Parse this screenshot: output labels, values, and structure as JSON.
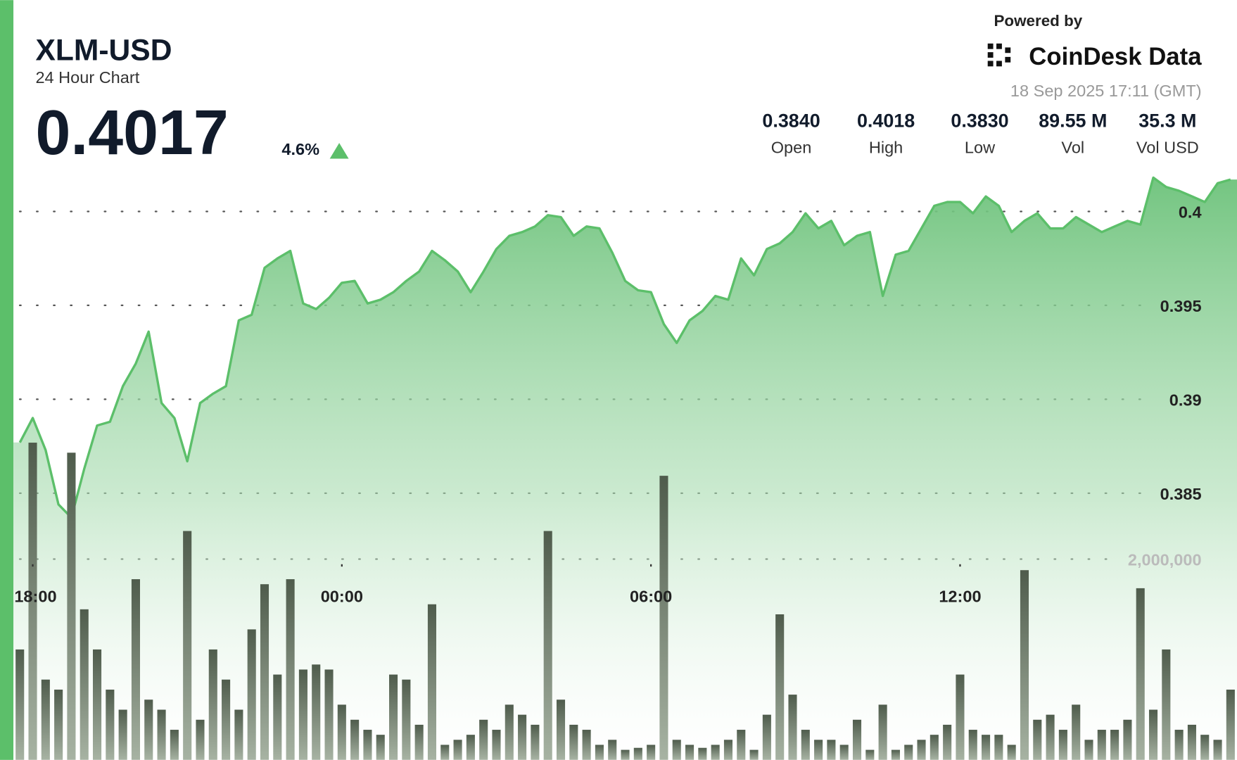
{
  "chart_data": {
    "type": "area",
    "title": "XLM-USD",
    "subtitle": "24 Hour Chart",
    "price": "0.4017",
    "change": "4.6%",
    "powered_by": "Powered by",
    "brand": "CoinDesk Data",
    "timestamp": "18 Sep 2025 17:11 (GMT)",
    "stats": [
      {
        "value": "0.3840",
        "label": "Open"
      },
      {
        "value": "0.4018",
        "label": "High"
      },
      {
        "value": "0.3830",
        "label": "Low"
      },
      {
        "value": "89.55 M",
        "label": "Vol"
      },
      {
        "value": "35.3 M",
        "label": "Vol USD"
      }
    ],
    "categories": [
      null,
      "18:00",
      null,
      null,
      null,
      null,
      null,
      null,
      null,
      null,
      null,
      null,
      null,
      null,
      null,
      null,
      null,
      null,
      null,
      null,
      null,
      null,
      null,
      null,
      null,
      "00:00",
      null,
      null,
      null,
      null,
      null,
      null,
      null,
      null,
      null,
      null,
      null,
      null,
      null,
      null,
      null,
      null,
      null,
      null,
      null,
      null,
      null,
      null,
      null,
      "06:00",
      null,
      null,
      null,
      null,
      null,
      null,
      null,
      null,
      null,
      null,
      null,
      null,
      null,
      null,
      null,
      null,
      null,
      null,
      null,
      null,
      null,
      null,
      null,
      "12:00",
      null,
      null,
      null,
      null,
      null,
      null,
      null,
      null,
      null,
      null,
      null,
      null,
      null,
      null,
      null,
      null,
      null,
      null,
      null,
      null,
      null
    ],
    "series": [
      {
        "name": "Price",
        "color": "#5cbf6a",
        "values": [
          0.3877,
          0.389,
          0.3873,
          0.3844,
          0.3837,
          0.3863,
          0.3886,
          0.3888,
          0.3907,
          0.3919,
          0.3936,
          0.3898,
          0.389,
          0.3867,
          0.3898,
          0.3903,
          0.3907,
          0.3942,
          0.3945,
          0.397,
          0.3975,
          0.3979,
          0.3951,
          0.3948,
          0.3954,
          0.3962,
          0.3963,
          0.3951,
          0.3953,
          0.3957,
          0.3963,
          0.3968,
          0.3979,
          0.3974,
          0.3968,
          0.3957,
          0.3968,
          0.398,
          0.3987,
          0.3989,
          0.3992,
          0.3998,
          0.3997,
          0.3987,
          0.3992,
          0.3991,
          0.3978,
          0.3963,
          0.3958,
          0.3957,
          0.394,
          0.393,
          0.3942,
          0.3947,
          0.3955,
          0.3953,
          0.3975,
          0.3966,
          0.398,
          0.3983,
          0.3989,
          0.3999,
          0.3991,
          0.3995,
          0.3982,
          0.3987,
          0.3989,
          0.3955,
          0.3977,
          0.3979,
          0.3991,
          0.4003,
          0.4005,
          0.4005,
          0.3999,
          0.4008,
          0.4003,
          0.3989,
          0.3995,
          0.3999,
          0.3991,
          0.3991,
          0.3997,
          0.3993,
          0.3989,
          0.3992,
          0.3995,
          0.3993,
          0.4018,
          0.4013,
          0.4011,
          0.4008,
          0.4005,
          0.4015,
          0.4017
        ]
      },
      {
        "name": "Volume",
        "color": "#5d6a59",
        "axis": "y2",
        "values": [
          1100000,
          3160000,
          800000,
          700000,
          3060000,
          1500000,
          1100000,
          700000,
          500000,
          1800000,
          600000,
          500000,
          300000,
          2280000,
          400000,
          1100000,
          800000,
          500000,
          1300000,
          1750000,
          850000,
          1800000,
          900000,
          950000,
          900000,
          550000,
          400000,
          300000,
          250000,
          850000,
          800000,
          350000,
          1550000,
          150000,
          200000,
          250000,
          400000,
          300000,
          550000,
          450000,
          350000,
          2280000,
          600000,
          350000,
          300000,
          150000,
          200000,
          100000,
          120000,
          150000,
          2830000,
          200000,
          150000,
          120000,
          150000,
          200000,
          300000,
          100000,
          450000,
          1450000,
          650000,
          300000,
          200000,
          200000,
          150000,
          400000,
          100000,
          550000,
          100000,
          150000,
          200000,
          250000,
          350000,
          850000,
          300000,
          250000,
          250000,
          150000,
          1890000,
          400000,
          450000,
          300000,
          550000,
          200000,
          300000,
          300000,
          400000,
          1710000,
          500000,
          1100000,
          300000,
          350000,
          250000,
          200000,
          700000
        ]
      }
    ],
    "ylim": [
      0.3708,
      0.4018
    ],
    "yticks": [
      0.385,
      0.39,
      0.395,
      0.4
    ],
    "y2lim": [
      0,
      5800000
    ],
    "y2ticks": [
      {
        "value": 2000000,
        "label": "2,000,000"
      }
    ],
    "grid": true
  }
}
